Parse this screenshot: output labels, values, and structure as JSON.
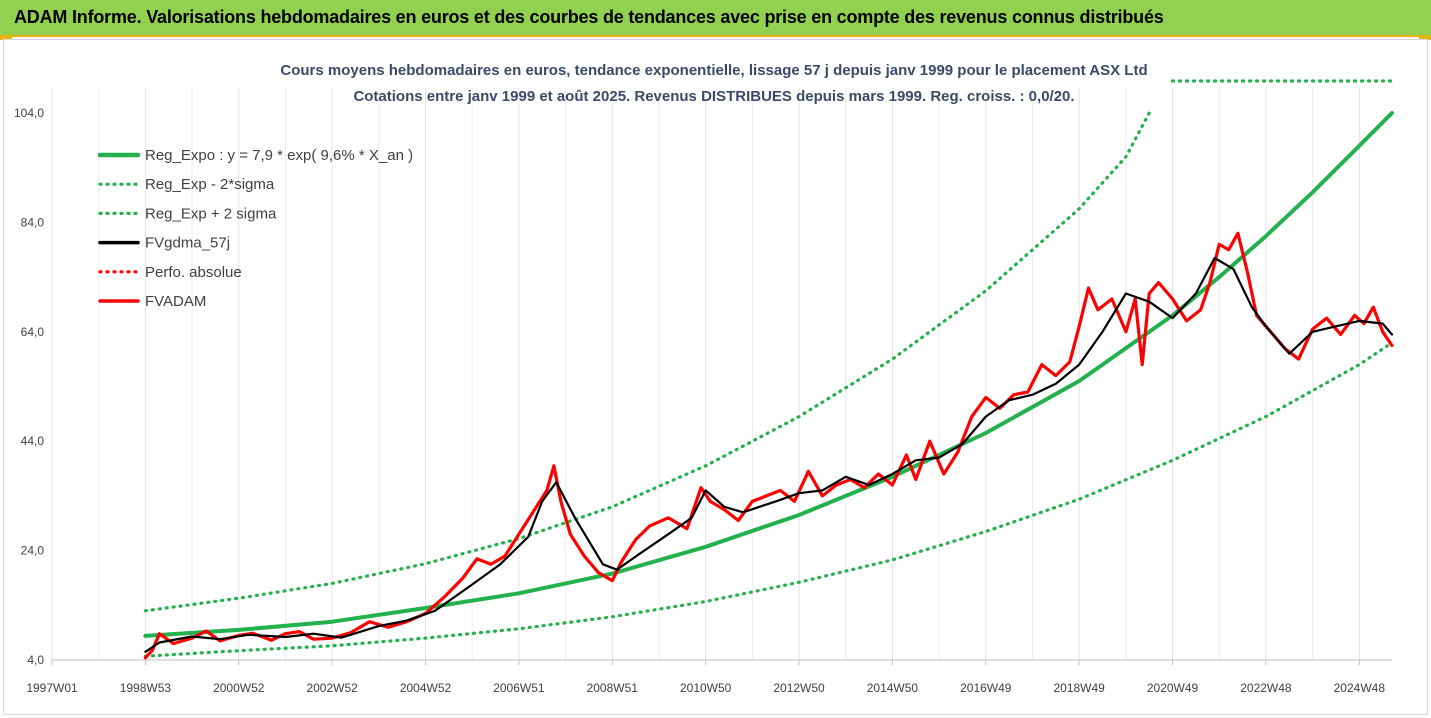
{
  "header": {
    "title": "ADAM Informe. Valorisations hebdomadaires en euros et des courbes de tendances avec prise en compte des revenus connus distribués"
  },
  "colors": {
    "header_bg": "#92d050",
    "trend": "#22b14c",
    "series_red": "#ff0000",
    "series_black": "#000000"
  },
  "chart_data": {
    "type": "line",
    "title": [
      "Cours moyens hebdomadaires en euros, tendance exponentielle, lissage 57 j depuis janv 1999 pour le placement ASX Ltd",
      "Cotations entre janv 1999 et août 2025.  Revenus DISTRIBUES depuis mars 1999. Reg. croiss. : 0,0/20."
    ],
    "xlabel": "",
    "ylabel": "",
    "x_range": [
      1997.0,
      2025.7
    ],
    "ylim": [
      4,
      108
    ],
    "y_ticks": [
      4,
      24,
      44,
      64,
      84,
      104
    ],
    "y_tick_labels": [
      "4,0",
      "24,0",
      "44,0",
      "64,0",
      "84,0",
      "104,0"
    ],
    "x_ticks": [
      {
        "label": "1997W01",
        "x": 1997.0
      },
      {
        "label": "1998W53",
        "x": 1999.0
      },
      {
        "label": "2000W52",
        "x": 2001.0
      },
      {
        "label": "2002W52",
        "x": 2003.0
      },
      {
        "label": "2004W52",
        "x": 2005.0
      },
      {
        "label": "2006W51",
        "x": 2007.0
      },
      {
        "label": "2008W51",
        "x": 2009.0
      },
      {
        "label": "2010W50",
        "x": 2011.0
      },
      {
        "label": "2012W50",
        "x": 2013.0
      },
      {
        "label": "2014W50",
        "x": 2015.0
      },
      {
        "label": "2016W49",
        "x": 2017.0
      },
      {
        "label": "2018W49",
        "x": 2019.0
      },
      {
        "label": "2020W49",
        "x": 2021.0
      },
      {
        "label": "2022W48",
        "x": 2023.0
      },
      {
        "label": "2024W48",
        "x": 2025.0
      }
    ],
    "grid": "vertical",
    "legend_position": "top-left",
    "series": [
      {
        "name": "Reg_Expo : y = 7,9 * exp( 9,6% *  X_an )",
        "color": "#22b14c",
        "style": "solid",
        "x": [
          1999.0,
          2001.0,
          2003.0,
          2005.0,
          2007.0,
          2009.0,
          2011.0,
          2013.0,
          2015.0,
          2017.0,
          2019.0,
          2021.0,
          2022.0,
          2023.0,
          2024.0,
          2025.0,
          2025.7
        ],
        "values": [
          8.4,
          9.5,
          11.0,
          13.5,
          16.2,
          19.8,
          24.7,
          30.5,
          37.5,
          45.5,
          55.0,
          67.0,
          74.0,
          81.5,
          89.5,
          98.0,
          104.0
        ]
      },
      {
        "name": "Reg_Exp - 2*sigma",
        "color": "#22b14c",
        "style": "dotted",
        "x": [
          1999.0,
          2001.0,
          2003.0,
          2005.0,
          2007.0,
          2009.0,
          2011.0,
          2013.0,
          2015.0,
          2017.0,
          2019.0,
          2021.0,
          2023.0,
          2025.0,
          2025.7
        ],
        "values": [
          4.7,
          5.7,
          6.6,
          8.0,
          9.7,
          11.9,
          14.7,
          18.2,
          22.3,
          27.5,
          33.4,
          40.5,
          48.5,
          58.0,
          62.0
        ]
      },
      {
        "name": "Reg_Exp + 2 sigma",
        "color": "#22b14c",
        "style": "dotted",
        "x": [
          1999.0,
          2001.0,
          2003.0,
          2005.0,
          2007.0,
          2009.0,
          2011.0,
          2013.0,
          2015.0,
          2017.0,
          2019.0,
          2020.0,
          2020.5
        ],
        "values": [
          13.0,
          15.3,
          18.0,
          21.6,
          26.2,
          32.0,
          39.5,
          48.5,
          59.0,
          71.5,
          86.5,
          96.0,
          104.0
        ]
      },
      {
        "name": "FVgdma_57j",
        "color": "#000000",
        "style": "solid",
        "x": [
          1999.0,
          1999.3,
          2000.0,
          2000.6,
          2001.2,
          2002.0,
          2002.6,
          2003.2,
          2004.0,
          2004.6,
          2005.2,
          2006.0,
          2006.6,
          2007.2,
          2007.5,
          2007.8,
          2008.2,
          2008.8,
          2009.1,
          2009.6,
          2010.2,
          2010.7,
          2011.0,
          2011.4,
          2011.8,
          2012.5,
          2013.0,
          2013.5,
          2014.0,
          2014.5,
          2015.0,
          2015.5,
          2016.0,
          2016.5,
          2017.0,
          2017.5,
          2018.0,
          2018.5,
          2019.0,
          2019.5,
          2020.0,
          2020.5,
          2021.0,
          2021.5,
          2021.9,
          2022.3,
          2022.7,
          2023.0,
          2023.5,
          2024.0,
          2024.5,
          2025.0,
          2025.5,
          2025.7
        ],
        "values": [
          5.5,
          7.2,
          8.3,
          7.8,
          8.6,
          8.2,
          8.8,
          8.1,
          10.2,
          11.2,
          13.0,
          17.8,
          21.5,
          26.5,
          33.0,
          36.5,
          30.0,
          21.5,
          20.5,
          23.5,
          27.0,
          30.0,
          35.0,
          32.0,
          31.0,
          33.0,
          34.5,
          35.0,
          37.5,
          36.0,
          38.0,
          40.5,
          41.0,
          43.5,
          48.5,
          51.5,
          52.5,
          54.5,
          58.0,
          64.0,
          71.0,
          69.5,
          66.5,
          71.0,
          77.5,
          75.5,
          68.5,
          65.0,
          60.0,
          64.0,
          65.0,
          66.0,
          65.5,
          63.5
        ]
      },
      {
        "name": "Perfo. absolue",
        "color": "#ff0000",
        "style": "dotted",
        "x": [],
        "values": []
      },
      {
        "name": "FVADAM",
        "color": "#ff0000",
        "style": "solid",
        "x": [
          1999.0,
          1999.15,
          1999.3,
          1999.6,
          2000.0,
          2000.3,
          2000.6,
          2001.0,
          2001.3,
          2001.7,
          2002.0,
          2002.3,
          2002.6,
          2003.0,
          2003.4,
          2003.8,
          2004.2,
          2004.6,
          2005.0,
          2005.4,
          2005.8,
          2006.1,
          2006.4,
          2006.7,
          2007.0,
          2007.3,
          2007.6,
          2007.75,
          2007.9,
          2008.1,
          2008.4,
          2008.7,
          2009.0,
          2009.2,
          2009.5,
          2009.8,
          2010.2,
          2010.6,
          2010.9,
          2011.1,
          2011.4,
          2011.7,
          2012.0,
          2012.3,
          2012.6,
          2012.9,
          2013.2,
          2013.5,
          2013.8,
          2014.1,
          2014.4,
          2014.7,
          2015.0,
          2015.3,
          2015.5,
          2015.8,
          2016.1,
          2016.4,
          2016.7,
          2017.0,
          2017.3,
          2017.6,
          2017.9,
          2018.2,
          2018.5,
          2018.8,
          2019.0,
          2019.2,
          2019.4,
          2019.7,
          2020.0,
          2020.2,
          2020.35,
          2020.5,
          2020.7,
          2021.0,
          2021.3,
          2021.6,
          2021.8,
          2022.0,
          2022.2,
          2022.4,
          2022.6,
          2022.8,
          2023.1,
          2023.4,
          2023.7,
          2024.0,
          2024.3,
          2024.6,
          2024.9,
          2025.1,
          2025.3,
          2025.5,
          2025.7
        ],
        "values": [
          4.4,
          5.8,
          8.8,
          7.0,
          8.0,
          9.3,
          7.5,
          8.5,
          8.9,
          7.6,
          8.8,
          9.2,
          7.8,
          8.0,
          9.0,
          11.0,
          10.0,
          11.0,
          12.5,
          15.5,
          19.0,
          22.5,
          21.5,
          23.0,
          27.0,
          31.0,
          35.0,
          39.5,
          33.0,
          27.0,
          23.0,
          20.0,
          18.5,
          22.0,
          26.0,
          28.5,
          30.0,
          28.0,
          35.5,
          33.0,
          31.5,
          29.5,
          33.0,
          34.0,
          35.0,
          33.0,
          38.5,
          34.0,
          36.0,
          37.0,
          35.5,
          38.0,
          36.0,
          41.5,
          37.0,
          44.0,
          38.0,
          42.0,
          48.5,
          52.0,
          50.0,
          52.5,
          53.0,
          58.0,
          56.0,
          58.5,
          65.0,
          72.0,
          68.0,
          70.0,
          64.0,
          70.0,
          58.0,
          71.0,
          73.0,
          70.0,
          66.0,
          68.0,
          73.0,
          80.0,
          79.0,
          82.0,
          75.0,
          67.0,
          64.0,
          61.0,
          59.0,
          64.5,
          66.5,
          63.5,
          67.0,
          65.5,
          68.5,
          64.0,
          61.5
        ]
      }
    ]
  }
}
